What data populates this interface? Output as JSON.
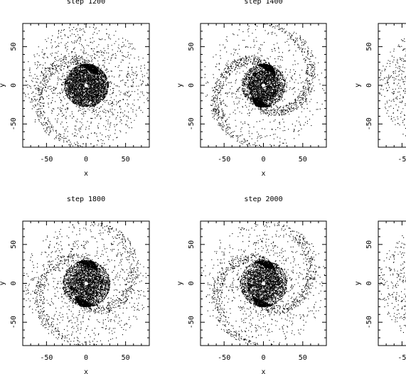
{
  "chart_data": [
    {
      "type": "scatter",
      "title": "step 1200",
      "xlabel": "x",
      "ylabel": "y",
      "xlim": [
        -80,
        80
      ],
      "ylim": [
        -80,
        80
      ],
      "x_ticks": [
        -50,
        0,
        50
      ],
      "y_ticks": [
        -50,
        0,
        50
      ],
      "x_tick_labels": [
        "-50",
        "0",
        "50"
      ],
      "y_tick_labels": [
        "-50",
        "0",
        "50"
      ],
      "center_marker": {
        "x": 0,
        "y": 0
      },
      "distribution": {
        "kind": "disk",
        "core_radius": 28,
        "outer_radius": 80,
        "spiral_arms": 1,
        "arm_strength": 0.25,
        "seed": 1200
      },
      "grid": false,
      "legend": "none"
    },
    {
      "type": "scatter",
      "title": "step 1400",
      "xlabel": "x",
      "ylabel": "y",
      "xlim": [
        -80,
        80
      ],
      "ylim": [
        -80,
        80
      ],
      "x_ticks": [
        -50,
        0,
        50
      ],
      "y_ticks": [
        -50,
        0,
        50
      ],
      "x_tick_labels": [
        "-50",
        "0",
        "50"
      ],
      "y_tick_labels": [
        "-50",
        "0",
        "50"
      ],
      "center_marker": {
        "x": 0,
        "y": 0
      },
      "distribution": {
        "kind": "disk",
        "core_radius": 28,
        "outer_radius": 80,
        "spiral_arms": 2,
        "arm_strength": 0.6,
        "seed": 1400
      },
      "grid": false,
      "legend": "none"
    },
    {
      "type": "scatter",
      "title": "",
      "xlabel": "",
      "ylabel": "y",
      "xlim": [
        -80,
        80
      ],
      "ylim": [
        -80,
        80
      ],
      "x_ticks": [
        -50
      ],
      "y_ticks": [
        -50,
        0,
        50
      ],
      "x_tick_labels": [
        "-5"
      ],
      "y_tick_labels": [
        "-50",
        "0",
        "50"
      ],
      "center_marker": null,
      "distribution": {
        "kind": "disk",
        "core_radius": 28,
        "outer_radius": 80,
        "spiral_arms": 0,
        "arm_strength": 0,
        "seed": 1600
      },
      "grid": false,
      "legend": "none",
      "partially_visible": true
    },
    {
      "type": "scatter",
      "title": "step 1800",
      "xlabel": "x",
      "ylabel": "y",
      "xlim": [
        -80,
        80
      ],
      "ylim": [
        -80,
        80
      ],
      "x_ticks": [
        -50,
        0,
        50
      ],
      "y_ticks": [
        -50,
        0,
        50
      ],
      "x_tick_labels": [
        "-50",
        "0",
        "50"
      ],
      "y_tick_labels": [
        "-50",
        "0",
        "50"
      ],
      "center_marker": {
        "x": 0,
        "y": 0
      },
      "distribution": {
        "kind": "disk",
        "core_radius": 30,
        "outer_radius": 80,
        "spiral_arms": 2,
        "arm_strength": 0.45,
        "seed": 1800
      },
      "grid": false,
      "legend": "none"
    },
    {
      "type": "scatter",
      "title": "step 2000",
      "xlabel": "x",
      "ylabel": "y",
      "xlim": [
        -80,
        80
      ],
      "ylim": [
        -80,
        80
      ],
      "x_ticks": [
        -50,
        0,
        50
      ],
      "y_ticks": [
        -50,
        0,
        50
      ],
      "x_tick_labels": [
        "-50",
        "0",
        "50"
      ],
      "y_tick_labels": [
        "-50",
        "0",
        "50"
      ],
      "center_marker": {
        "x": 0,
        "y": 0
      },
      "distribution": {
        "kind": "disk",
        "core_radius": 30,
        "outer_radius": 80,
        "spiral_arms": 2,
        "arm_strength": 0.5,
        "seed": 2000
      },
      "grid": false,
      "legend": "none"
    },
    {
      "type": "scatter",
      "title": "",
      "xlabel": "",
      "ylabel": "y",
      "xlim": [
        -80,
        80
      ],
      "ylim": [
        -80,
        80
      ],
      "x_ticks": [
        -50
      ],
      "y_ticks": [
        -50,
        0,
        50
      ],
      "x_tick_labels": [
        "-5"
      ],
      "y_tick_labels": [
        "-50",
        "0",
        "50"
      ],
      "center_marker": null,
      "distribution": {
        "kind": "disk",
        "core_radius": 28,
        "outer_radius": 80,
        "spiral_arms": 0,
        "arm_strength": 0,
        "seed": 2200
      },
      "grid": false,
      "legend": "none",
      "partially_visible": true
    }
  ],
  "colors": {
    "points": "#000000",
    "background": "#ffffff",
    "center_marker": "#ffffff"
  }
}
